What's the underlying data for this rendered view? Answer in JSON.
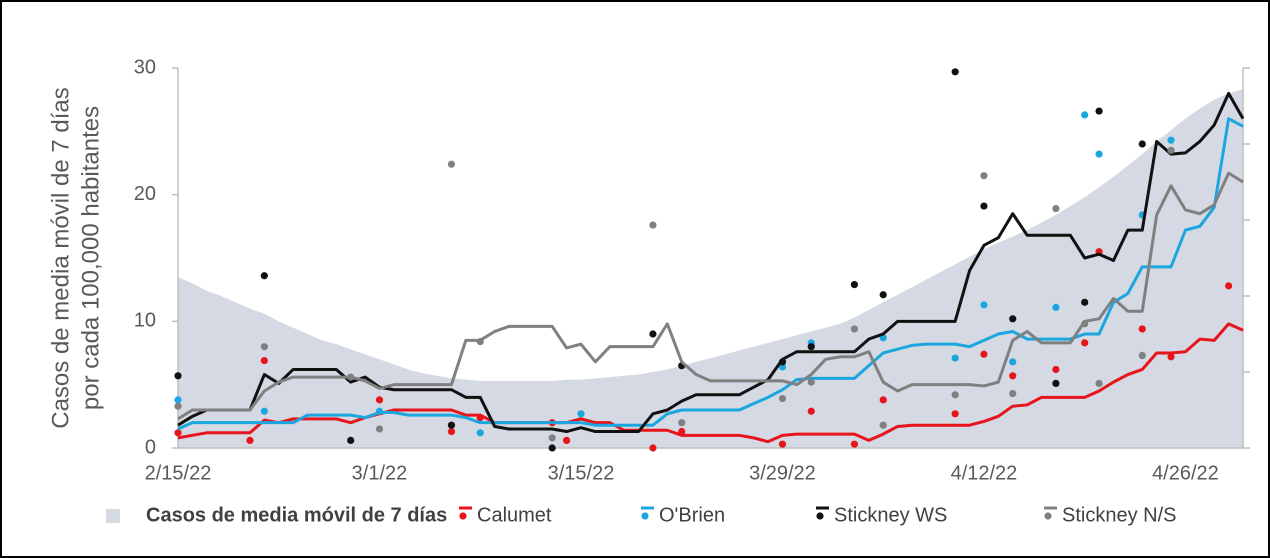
{
  "chart_data": {
    "type": "line",
    "ylabel": [
      "Casos de media móvil de 7 días",
      "por cada 100,000 habitantes"
    ],
    "categories": [
      "2/15/22",
      null,
      null,
      null,
      null,
      null,
      null,
      null,
      null,
      null,
      null,
      null,
      null,
      null,
      "3/1/22",
      null,
      null,
      null,
      null,
      null,
      null,
      null,
      null,
      null,
      null,
      null,
      null,
      null,
      "3/15/22",
      null,
      null,
      null,
      null,
      null,
      null,
      null,
      null,
      null,
      null,
      null,
      null,
      null,
      "3/29/22",
      null,
      null,
      null,
      null,
      null,
      null,
      null,
      null,
      null,
      null,
      null,
      null,
      null,
      "4/12/22",
      null,
      null,
      null,
      null,
      null,
      null,
      null,
      null,
      null,
      null,
      null,
      null,
      null,
      "4/26/22",
      null,
      null,
      null,
      null
    ],
    "ylim": [
      0,
      30
    ],
    "yticks": [
      0,
      10,
      20,
      30
    ],
    "area": {
      "name": "Casos de media móvil de 7 días",
      "color": "#d5d9e3",
      "values": [
        13.5,
        13,
        12.4,
        12,
        11.5,
        11,
        10.6,
        10,
        9.5,
        9,
        8.5,
        8.2,
        7.8,
        7.4,
        7,
        6.6,
        6.2,
        5.9,
        5.7,
        5.5,
        5.4,
        5.3,
        5.3,
        5.3,
        5.3,
        5.3,
        5.3,
        5.4,
        5.4,
        5.5,
        5.6,
        5.7,
        5.8,
        6,
        6.2,
        6.5,
        6.8,
        7.1,
        7.4,
        7.7,
        8,
        8.3,
        8.6,
        8.9,
        9.2,
        9.5,
        9.8,
        10.3,
        10.9,
        11.5,
        12.1,
        12.7,
        13.3,
        13.9,
        14.5,
        15.1,
        15.7,
        16.2,
        16.7,
        17.2,
        17.8,
        18.4,
        19.1,
        19.8,
        20.6,
        21.4,
        22.3,
        23.2,
        24.2,
        25.1,
        26,
        26.8,
        27.5,
        28,
        28.3
      ]
    },
    "series": [
      {
        "name": "Calumet",
        "color": "#e8141b",
        "values": [
          0.8,
          1,
          1.2,
          1.2,
          1.2,
          1.2,
          2.2,
          2,
          2.3,
          2.3,
          2.3,
          2.3,
          2,
          2.4,
          2.7,
          3,
          3,
          3,
          3,
          3,
          2.6,
          2.6,
          2,
          2,
          2,
          2,
          2,
          2,
          2.3,
          2,
          2,
          1.4,
          1.4,
          1.4,
          1.4,
          1,
          1,
          1,
          1,
          1,
          0.8,
          0.5,
          1,
          1.1,
          1.1,
          1.1,
          1.1,
          1.1,
          0.6,
          1.1,
          1.7,
          1.8,
          1.8,
          1.8,
          1.8,
          1.8,
          2.1,
          2.5,
          3.3,
          3.4,
          4,
          4,
          4,
          4,
          4.5,
          5.2,
          5.8,
          6.2,
          7.5,
          7.5,
          7.6,
          8.6,
          8.5,
          9.8,
          9.3
        ],
        "points": [
          1.2,
          null,
          null,
          null,
          null,
          0.6,
          6.9,
          null,
          null,
          null,
          null,
          null,
          null,
          null,
          3.8,
          null,
          null,
          null,
          null,
          1.3,
          null,
          2.4,
          null,
          null,
          null,
          null,
          2.0,
          0.6,
          null,
          null,
          null,
          null,
          null,
          0,
          null,
          1.3,
          null,
          null,
          null,
          null,
          null,
          null,
          0.3,
          null,
          2.9,
          null,
          null,
          0.3,
          null,
          3.8,
          null,
          null,
          null,
          null,
          2.7,
          null,
          7.4,
          null,
          5.7,
          null,
          null,
          6.2,
          null,
          8.3,
          15.5,
          null,
          null,
          9.4,
          null,
          7.2,
          null,
          null,
          null,
          12.8,
          null
        ]
      },
      {
        "name": "O'Brien",
        "color": "#1aa7e0",
        "values": [
          1.5,
          2,
          2,
          2,
          2,
          2,
          2,
          2,
          2,
          2.6,
          2.6,
          2.6,
          2.6,
          2.4,
          2.8,
          2.8,
          2.6,
          2.6,
          2.6,
          2.6,
          2.4,
          2,
          2,
          2,
          2,
          2,
          2,
          2,
          2,
          1.8,
          1.8,
          1.8,
          1.8,
          1.8,
          2.7,
          3,
          3,
          3,
          3,
          3,
          3.5,
          4,
          4.6,
          5.4,
          5.5,
          5.5,
          5.5,
          5.5,
          6.5,
          7.5,
          7.8,
          8.1,
          8.2,
          8.2,
          8.2,
          8,
          8.5,
          9,
          9.2,
          8.6,
          8.6,
          8.6,
          8.6,
          9,
          9,
          11.5,
          12.2,
          14.3,
          14.3,
          14.3,
          17.2,
          17.5,
          19,
          26,
          25.4
        ],
        "points": [
          3.8,
          null,
          null,
          null,
          null,
          null,
          2.9,
          null,
          null,
          null,
          null,
          null,
          null,
          null,
          2.9,
          null,
          null,
          null,
          null,
          null,
          null,
          1.2,
          null,
          null,
          null,
          null,
          null,
          null,
          2.7,
          null,
          null,
          null,
          null,
          null,
          null,
          null,
          null,
          null,
          null,
          null,
          null,
          null,
          6.4,
          null,
          8.3,
          null,
          null,
          null,
          null,
          8.7,
          null,
          null,
          null,
          null,
          7.1,
          null,
          11.3,
          null,
          6.8,
          null,
          null,
          11.1,
          null,
          26.3,
          23.2,
          null,
          null,
          18.4,
          null,
          24.3,
          null,
          null,
          null,
          null,
          null
        ]
      },
      {
        "name": "Stickney WS",
        "color": "#111111",
        "values": [
          1.8,
          2.5,
          3,
          3,
          3,
          3,
          5.8,
          5.1,
          6.2,
          6.2,
          6.2,
          6.2,
          5.2,
          5.6,
          4.8,
          4.6,
          4.6,
          4.6,
          4.6,
          4.6,
          4,
          4,
          1.7,
          1.5,
          1.5,
          1.5,
          1.5,
          1.3,
          1.6,
          1.3,
          1.3,
          1.3,
          1.3,
          2.7,
          3,
          3.7,
          4.2,
          4.2,
          4.2,
          4.2,
          4.8,
          5.4,
          7,
          7.6,
          7.6,
          7.6,
          7.6,
          7.6,
          8.6,
          9,
          10,
          10,
          10,
          10,
          10,
          14,
          16,
          16.6,
          18.5,
          16.8,
          16.8,
          16.8,
          16.8,
          15,
          15.3,
          14.8,
          17.2,
          17.2,
          24.2,
          23.2,
          23.3,
          24.2,
          25.5,
          28,
          26
        ],
        "points": [
          5.7,
          null,
          null,
          null,
          null,
          null,
          13.6,
          null,
          null,
          null,
          null,
          null,
          0.6,
          null,
          null,
          null,
          null,
          null,
          null,
          1.8,
          null,
          null,
          null,
          null,
          null,
          null,
          0,
          null,
          null,
          null,
          null,
          null,
          null,
          9.0,
          null,
          6.5,
          null,
          null,
          null,
          null,
          null,
          null,
          6.8,
          null,
          8.0,
          null,
          null,
          12.9,
          null,
          12.1,
          null,
          null,
          null,
          null,
          29.7,
          null,
          19.1,
          null,
          10.2,
          null,
          null,
          5.1,
          null,
          11.5,
          26.6,
          null,
          null,
          24.0,
          null,
          null,
          null,
          null,
          null,
          null,
          null
        ]
      },
      {
        "name": "Stickney N/S",
        "color": "#808080",
        "values": [
          2.3,
          3,
          3,
          3,
          3,
          3,
          4.5,
          5.2,
          5.6,
          5.6,
          5.6,
          5.6,
          5.6,
          5.3,
          4.7,
          5,
          5,
          5,
          5,
          5,
          8.5,
          8.5,
          9.2,
          9.6,
          9.6,
          9.6,
          9.6,
          7.9,
          8.2,
          6.8,
          8,
          8,
          8,
          8,
          9.8,
          6.8,
          5.8,
          5.3,
          5.3,
          5.3,
          5.3,
          5.3,
          5.3,
          5,
          5.8,
          7,
          7.2,
          7.2,
          7.6,
          5.2,
          4.5,
          5,
          5,
          5,
          5,
          5,
          4.9,
          5.2,
          8.5,
          9.2,
          8.3,
          8.3,
          8.3,
          10,
          10.2,
          11.8,
          10.8,
          10.8,
          18.4,
          20.7,
          18.8,
          18.5,
          19.2,
          21.7,
          21
        ],
        "points": [
          3.3,
          null,
          null,
          null,
          null,
          null,
          8.0,
          null,
          null,
          null,
          null,
          null,
          5.6,
          null,
          1.5,
          null,
          null,
          null,
          null,
          22.4,
          null,
          8.4,
          null,
          null,
          null,
          null,
          0.8,
          null,
          null,
          null,
          null,
          null,
          null,
          17.6,
          null,
          2.0,
          null,
          null,
          null,
          null,
          null,
          null,
          3.9,
          null,
          5.2,
          null,
          null,
          9.4,
          null,
          1.8,
          null,
          null,
          null,
          null,
          4.2,
          null,
          21.5,
          null,
          4.3,
          null,
          null,
          18.9,
          null,
          9.8,
          5.1,
          null,
          null,
          7.3,
          null,
          23.5,
          null,
          null,
          null,
          null,
          null
        ]
      }
    ]
  }
}
